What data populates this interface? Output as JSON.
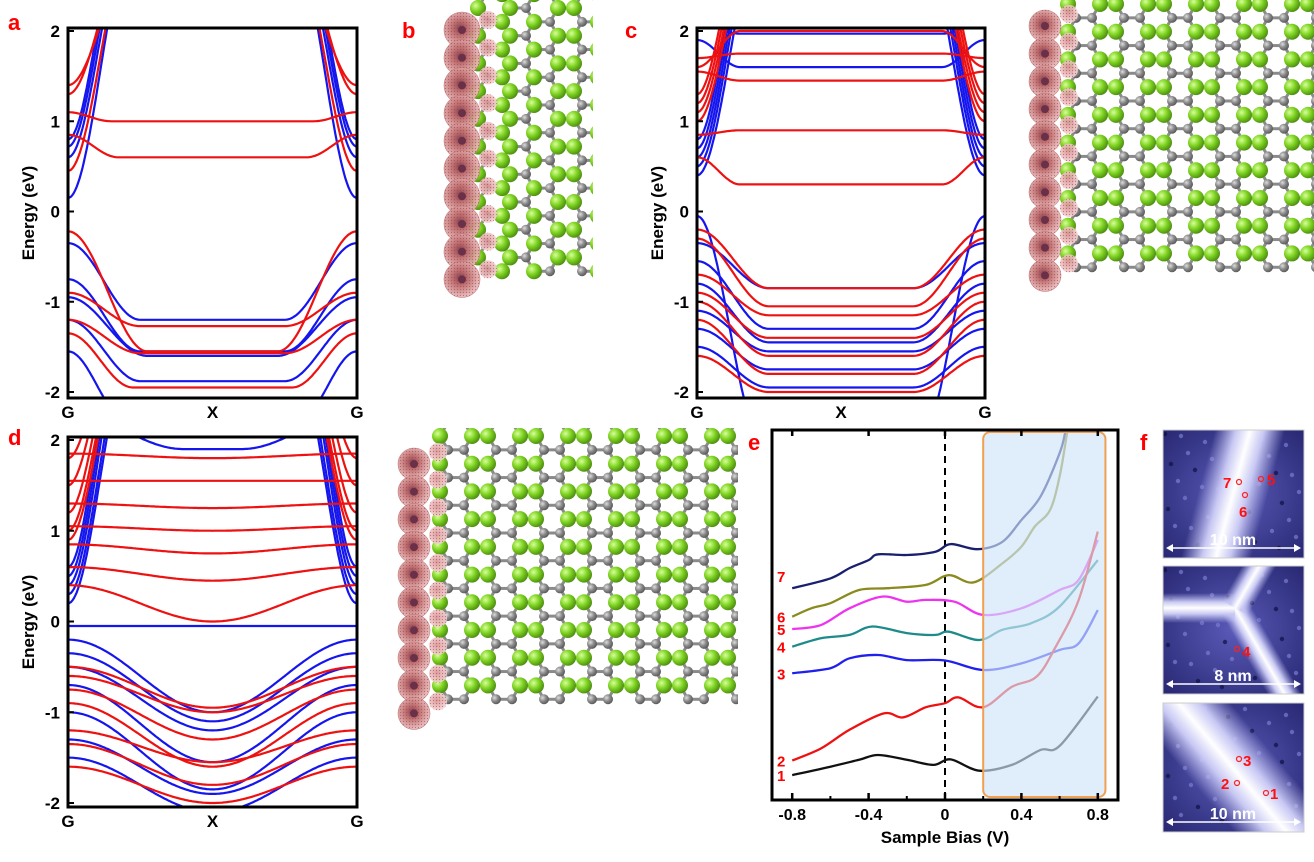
{
  "panel_labels": {
    "a": "a",
    "b": "b",
    "c": "c",
    "d": "d",
    "e": "e",
    "f": "f"
  },
  "colors": {
    "panel_label": "#ff0000",
    "band_red": "#ee1111",
    "band_blue": "#1515ee",
    "carbon_large": "#7ed321",
    "carbon_small": "#8a8a8a",
    "edge_atom": "#c86a6a",
    "highlight_fill": "#d6e9fb",
    "highlight_stroke": "#f0a050"
  },
  "band_axes": {
    "ylabel": "Energy (eV)",
    "yticks": [
      "2",
      "1",
      "0",
      "-1",
      "-2"
    ],
    "xticks": [
      "G",
      "X",
      "G"
    ],
    "ylim": [
      -2,
      2
    ]
  },
  "chart_data": [
    {
      "panel": "a",
      "type": "line",
      "ylabel": "Energy (eV)",
      "xticks": [
        "G",
        "X",
        "G"
      ],
      "ylim": [
        -2,
        2
      ],
      "note_format": "each band: [E at G, E at X, k-width of dispersion as fraction of G-X]",
      "series": [
        {
          "color": "blue",
          "bands": [
            [
              0.15,
              3,
              0.45
            ],
            [
              0.6,
              3,
              0.42
            ],
            [
              0.72,
              3,
              0.4
            ],
            [
              0.8,
              3,
              0.38
            ],
            [
              -0.35,
              -1.2,
              0.5
            ],
            [
              -0.75,
              -1.55,
              0.5
            ],
            [
              -0.95,
              -1.6,
              0.55
            ],
            [
              -1.2,
              -1.88,
              0.5
            ],
            [
              -1.55,
              -2.3,
              0.4
            ]
          ]
        },
        {
          "color": "red",
          "bands": [
            [
              1.4,
              3,
              0.5
            ],
            [
              1.3,
              3,
              0.45
            ],
            [
              0.45,
              3,
              0.45
            ],
            [
              0.85,
              0.6,
              0.35
            ],
            [
              1.1,
              1.0,
              0.3
            ],
            [
              -0.22,
              -1.55,
              0.55
            ],
            [
              -0.9,
              -1.27,
              0.5
            ],
            [
              -1.2,
              -1.57,
              0.5
            ],
            [
              -1.35,
              -1.95,
              0.45
            ]
          ]
        }
      ]
    },
    {
      "panel": "c",
      "type": "line",
      "ylabel": "Energy (eV)",
      "xticks": [
        "G",
        "X",
        "G"
      ],
      "ylim": [
        -2,
        2
      ],
      "series": [
        {
          "color": "blue",
          "bands": [
            [
              0.4,
              3,
              0.45
            ],
            [
              0.5,
              3,
              0.42
            ],
            [
              0.6,
              3,
              0.4
            ],
            [
              0.7,
              3,
              0.38
            ],
            [
              0.8,
              3,
              0.36
            ],
            [
              1.9,
              1.6,
              0.3
            ],
            [
              2.1,
              1.97,
              0.3
            ],
            [
              -0.05,
              -2.5,
              0.45
            ],
            [
              -0.35,
              -0.85,
              0.5
            ],
            [
              -0.55,
              -1.3,
              0.5
            ],
            [
              -0.8,
              -1.45,
              0.5
            ],
            [
              -1.1,
              -1.55,
              0.5
            ],
            [
              -1.3,
              -1.75,
              0.5
            ],
            [
              -1.5,
              -1.95,
              0.5
            ]
          ]
        },
        {
          "color": "red",
          "bands": [
            [
              1.0,
              3,
              0.4
            ],
            [
              1.1,
              3,
              0.38
            ],
            [
              1.2,
              3,
              0.36
            ],
            [
              1.3,
              3,
              0.34
            ],
            [
              0.6,
              0.3,
              0.3
            ],
            [
              0.85,
              0.9,
              0.3
            ],
            [
              1.55,
              1.45,
              0.3
            ],
            [
              1.7,
              1.75,
              0.3
            ],
            [
              1.6,
              2.0,
              0.3
            ],
            [
              -0.2,
              -0.85,
              0.5
            ],
            [
              -0.3,
              -1.05,
              0.5
            ],
            [
              -0.7,
              -1.15,
              0.5
            ],
            [
              -0.9,
              -1.4,
              0.5
            ],
            [
              -1.0,
              -1.6,
              0.5
            ],
            [
              -1.2,
              -1.8,
              0.5
            ],
            [
              -1.6,
              -2.0,
              0.5
            ]
          ]
        }
      ]
    },
    {
      "panel": "d",
      "type": "line",
      "ylabel": "Energy (eV)",
      "xticks": [
        "G",
        "X",
        "G"
      ],
      "ylim": [
        -2,
        2
      ],
      "series": [
        {
          "color": "blue",
          "bands": [
            [
              0.2,
              3,
              0.45
            ],
            [
              0.3,
              3,
              0.43
            ],
            [
              0.4,
              3,
              0.4
            ],
            [
              0.5,
              3,
              0.38
            ],
            [
              0.6,
              3,
              0.36
            ],
            [
              -0.05,
              -0.05,
              1
            ],
            [
              2.3,
              1.9,
              0.8
            ],
            [
              -0.2,
              -1.0,
              1
            ],
            [
              -0.35,
              -1.1,
              1
            ],
            [
              -0.5,
              -1.2,
              1
            ],
            [
              -0.7,
              -1.55,
              1
            ],
            [
              -1.0,
              -1.85,
              1
            ],
            [
              -1.3,
              -1.9,
              1
            ],
            [
              -1.5,
              -2.1,
              1
            ]
          ]
        },
        {
          "color": "red",
          "bands": [
            [
              0.9,
              3,
              0.4
            ],
            [
              1.0,
              3,
              0.38
            ],
            [
              1.2,
              3,
              0.36
            ],
            [
              1.5,
              3,
              0.34
            ],
            [
              1.8,
              3,
              0.32
            ],
            [
              0.4,
              0.0,
              1
            ],
            [
              0.6,
              0.45,
              1
            ],
            [
              0.85,
              0.75,
              1
            ],
            [
              1.05,
              1.0,
              1
            ],
            [
              1.3,
              1.25,
              1
            ],
            [
              1.55,
              1.55,
              1
            ],
            [
              1.85,
              1.8,
              1
            ],
            [
              -0.5,
              -0.95,
              1
            ],
            [
              -0.6,
              -1.0,
              1
            ],
            [
              -0.75,
              -1.3,
              1
            ],
            [
              -0.9,
              -1.6,
              1
            ],
            [
              -1.2,
              -1.55,
              1
            ],
            [
              -1.35,
              -1.8,
              1
            ],
            [
              -1.6,
              -2.0,
              1
            ]
          ]
        }
      ]
    },
    {
      "panel": "e",
      "type": "line",
      "xlabel": "Sample Bias (V)",
      "ylabel": "",
      "xticks": [
        "-0.8",
        "-0.4",
        "0",
        "0.4",
        "0.8"
      ],
      "xtick_values": [
        -0.8,
        -0.4,
        0,
        0.4,
        0.8
      ],
      "xlim": [
        -0.9,
        0.9
      ],
      "ylim": [
        0,
        100
      ],
      "y_units": "arbitrary (offset dI/dV)",
      "highlight_range": [
        0.2,
        0.84
      ],
      "dashed_line_at": 0,
      "series": [
        {
          "name": "7",
          "color": "#1a1f6e",
          "points": [
            [
              -0.8,
              57.2
            ],
            [
              -0.6,
              59.9
            ],
            [
              -0.5,
              62.7
            ],
            [
              -0.4,
              64.9
            ],
            [
              -0.35,
              66.5
            ],
            [
              -0.2,
              66.3
            ],
            [
              -0.05,
              67.2
            ],
            [
              0.03,
              69.3
            ],
            [
              0.17,
              67.9
            ],
            [
              0.3,
              69.9
            ],
            [
              0.4,
              75.9
            ],
            [
              0.5,
              82.3
            ],
            [
              0.6,
              94.2
            ],
            [
              0.63,
              100
            ]
          ]
        },
        {
          "name": "6",
          "color": "#8a8a1e",
          "points": [
            [
              -0.8,
              49.4
            ],
            [
              -0.7,
              51.7
            ],
            [
              -0.6,
              53.1
            ],
            [
              -0.45,
              56.7
            ],
            [
              -0.3,
              57.2
            ],
            [
              -0.1,
              58.1
            ],
            [
              0.02,
              60.8
            ],
            [
              0.15,
              58.8
            ],
            [
              0.3,
              64.0
            ],
            [
              0.4,
              68.6
            ],
            [
              0.47,
              74.1
            ],
            [
              0.55,
              78.6
            ],
            [
              0.6,
              87.8
            ],
            [
              0.64,
              100
            ]
          ]
        },
        {
          "name": "5",
          "color": "#ee33ee",
          "points": [
            [
              -0.8,
              46.0
            ],
            [
              -0.65,
              47.1
            ],
            [
              -0.5,
              51.7
            ],
            [
              -0.33,
              54.9
            ],
            [
              -0.2,
              53.5
            ],
            [
              -0.1,
              54.0
            ],
            [
              0.05,
              53.5
            ],
            [
              0.2,
              49.9
            ],
            [
              0.4,
              51.7
            ],
            [
              0.6,
              56.7
            ],
            [
              0.7,
              59.5
            ],
            [
              0.8,
              70.4
            ]
          ]
        },
        {
          "name": "4",
          "color": "#1e8a8a",
          "points": [
            [
              -0.8,
              41.2
            ],
            [
              -0.65,
              43.5
            ],
            [
              -0.5,
              44.4
            ],
            [
              -0.38,
              46.7
            ],
            [
              -0.2,
              44.9
            ],
            [
              -0.05,
              44.4
            ],
            [
              0.02,
              45.3
            ],
            [
              0.18,
              43.0
            ],
            [
              0.3,
              45.8
            ],
            [
              0.45,
              47.6
            ],
            [
              0.6,
              52.2
            ],
            [
              0.8,
              64.9
            ]
          ]
        },
        {
          "name": "3",
          "color": "#2020ee",
          "points": [
            [
              -0.8,
              33.9
            ],
            [
              -0.6,
              35.3
            ],
            [
              -0.5,
              38.0
            ],
            [
              -0.35,
              38.9
            ],
            [
              -0.2,
              37.5
            ],
            [
              0.0,
              37.4
            ],
            [
              0.2,
              34.8
            ],
            [
              0.4,
              36.6
            ],
            [
              0.6,
              40.3
            ],
            [
              0.7,
              42.1
            ],
            [
              0.8,
              51.2
            ]
          ]
        },
        {
          "name": "2",
          "color": "#ee1111",
          "points": [
            [
              -0.8,
              10.0
            ],
            [
              -0.65,
              13.3
            ],
            [
              -0.5,
              18.4
            ],
            [
              -0.32,
              22.9
            ],
            [
              -0.22,
              21.8
            ],
            [
              -0.1,
              24.6
            ],
            [
              0.0,
              25.7
            ],
            [
              0.07,
              27.3
            ],
            [
              0.2,
              24.6
            ],
            [
              0.35,
              30.2
            ],
            [
              0.48,
              33.0
            ],
            [
              0.58,
              41.2
            ],
            [
              0.7,
              54.0
            ],
            [
              0.8,
              72.7
            ]
          ]
        },
        {
          "name": "1",
          "color": "#111111",
          "points": [
            [
              -0.8,
              6.0
            ],
            [
              -0.6,
              8.3
            ],
            [
              -0.45,
              10.2
            ],
            [
              -0.35,
              11.5
            ],
            [
              -0.2,
              10.2
            ],
            [
              -0.06,
              8.8
            ],
            [
              0.03,
              10.3
            ],
            [
              0.18,
              7.2
            ],
            [
              0.35,
              8.8
            ],
            [
              0.5,
              12.9
            ],
            [
              0.6,
              14.0
            ],
            [
              0.8,
              27.5
            ]
          ]
        }
      ]
    }
  ],
  "stm_images": [
    {
      "scale_label": "10 nm",
      "markers": [
        "7",
        "5",
        "6"
      ]
    },
    {
      "scale_label": "8 nm",
      "markers": [
        "4"
      ]
    },
    {
      "scale_label": "10 nm",
      "markers": [
        "3",
        "2",
        "1"
      ]
    }
  ]
}
